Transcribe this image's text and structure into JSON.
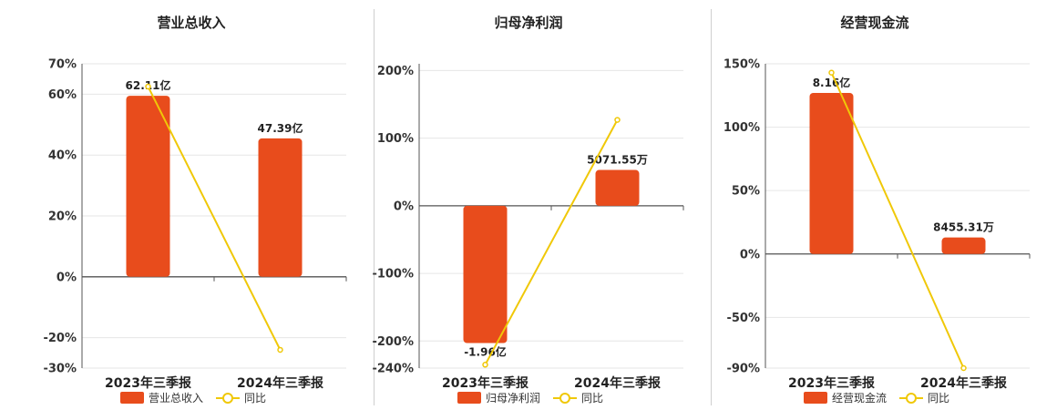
{
  "colors": {
    "bar": "#e84c1c",
    "line": "#f0c808",
    "grid": "#e6e6e6",
    "axis": "#555555"
  },
  "chart_data": [
    {
      "type": "bar",
      "title": "营业总收入",
      "categories": [
        "2023年三季报",
        "2024年三季报"
      ],
      "series": [
        {
          "name": "营业总收入",
          "kind": "bar",
          "values": [
            59.5,
            45.5
          ],
          "labels": [
            "62.11亿",
            "47.39亿"
          ]
        },
        {
          "name": "同比",
          "kind": "line",
          "values": [
            62.5,
            -24
          ]
        }
      ],
      "ylim": [
        -30,
        70
      ],
      "yticks": [
        70,
        60,
        40,
        20,
        0,
        -20,
        -30
      ],
      "yticklabels": [
        "70%",
        "60%",
        "40%",
        "20%",
        "0%",
        "-20%",
        "-30%"
      ],
      "grid": true,
      "legend": "bottom"
    },
    {
      "type": "bar",
      "title": "归母净利润",
      "categories": [
        "2023年三季报",
        "2024年三季报"
      ],
      "series": [
        {
          "name": "归母净利润",
          "kind": "bar",
          "values": [
            -203,
            53
          ],
          "labels": [
            "-1.96亿",
            "5071.55万"
          ]
        },
        {
          "name": "同比",
          "kind": "line",
          "values": [
            -235,
            127
          ]
        }
      ],
      "ylim": [
        -240,
        210
      ],
      "yticks": [
        200,
        100,
        0,
        -100,
        -200,
        -240
      ],
      "yticklabels": [
        "200%",
        "100%",
        "0%",
        "-100%",
        "-200%",
        "-240%"
      ],
      "grid": true,
      "legend": "bottom"
    },
    {
      "type": "bar",
      "title": "经营现金流",
      "categories": [
        "2023年三季报",
        "2024年三季报"
      ],
      "series": [
        {
          "name": "经营现金流",
          "kind": "bar",
          "values": [
            127,
            13
          ],
          "labels": [
            "8.16亿",
            "8455.31万"
          ]
        },
        {
          "name": "同比",
          "kind": "line",
          "values": [
            143,
            -90
          ]
        }
      ],
      "ylim": [
        -90,
        150
      ],
      "yticks": [
        150,
        100,
        50,
        0,
        -50,
        -90
      ],
      "yticklabels": [
        "150%",
        "100%",
        "50%",
        "0%",
        "-50%",
        "-90%"
      ],
      "grid": true,
      "legend": "bottom"
    }
  ]
}
